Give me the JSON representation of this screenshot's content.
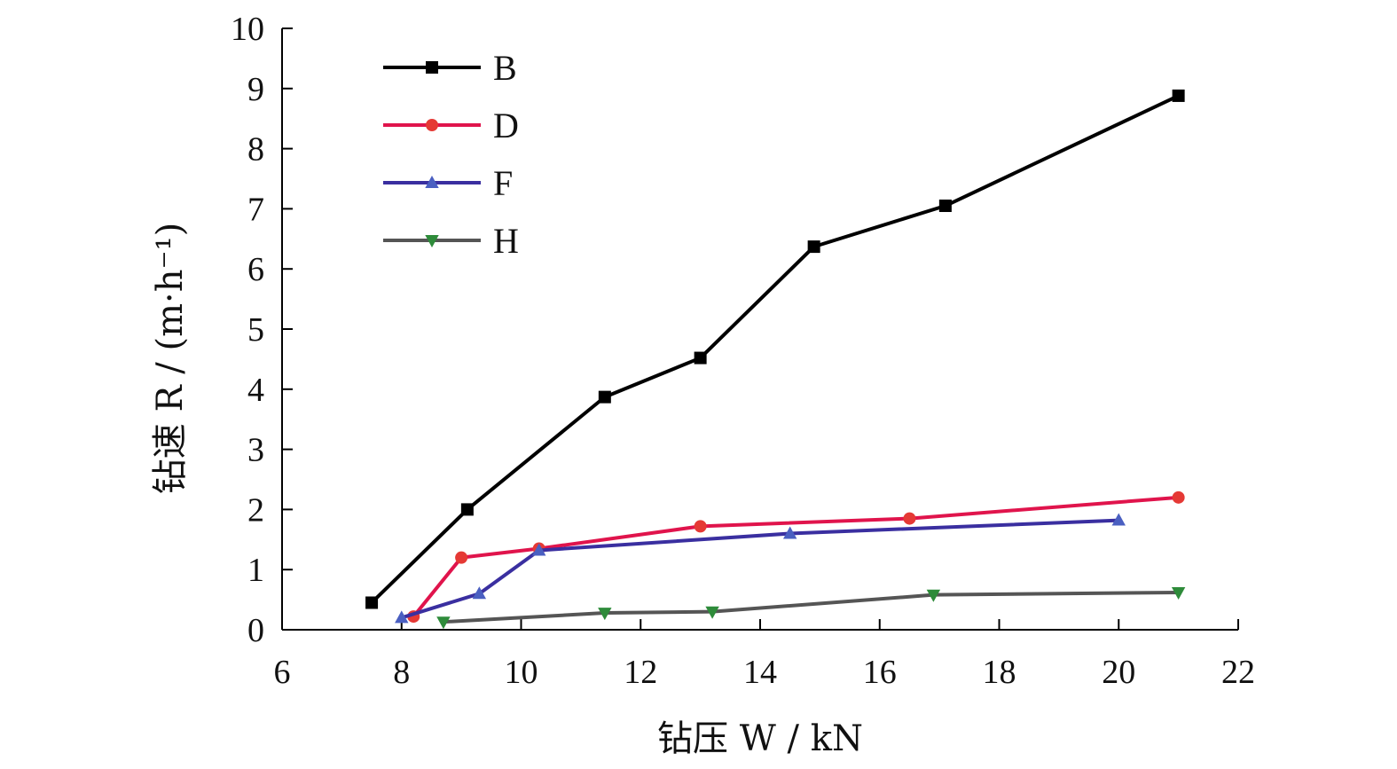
{
  "chart_data": {
    "type": "line",
    "title": "",
    "xlabel": "钻压 W / kN",
    "ylabel": "钻速 R / (m·h⁻¹)",
    "xlim": [
      6,
      22
    ],
    "ylim": [
      0,
      10
    ],
    "xticks": [
      6,
      8,
      10,
      12,
      14,
      16,
      18,
      20,
      22
    ],
    "yticks": [
      0,
      1,
      2,
      3,
      4,
      5,
      6,
      7,
      8,
      9,
      10
    ],
    "grid": false,
    "legend_position": "top-left",
    "series": [
      {
        "name": "B",
        "color": "#000000",
        "marker": "square",
        "x": [
          7.5,
          9.1,
          11.4,
          13.0,
          14.9,
          17.1,
          21.0
        ],
        "y": [
          0.45,
          2.0,
          3.87,
          4.52,
          6.37,
          7.05,
          8.88
        ]
      },
      {
        "name": "D",
        "color": "#e0144c",
        "marker": "circle",
        "marker_color": "#e53935",
        "x": [
          8.2,
          9.0,
          10.3,
          13.0,
          16.5,
          21.0
        ],
        "y": [
          0.22,
          1.2,
          1.35,
          1.72,
          1.85,
          2.2
        ]
      },
      {
        "name": "F",
        "color": "#3a2fa0",
        "marker": "triangle-up",
        "marker_color": "#4a5fc1",
        "x": [
          8.0,
          9.3,
          10.3,
          14.5,
          20.0
        ],
        "y": [
          0.2,
          0.6,
          1.32,
          1.6,
          1.82
        ]
      },
      {
        "name": "H",
        "color": "#555555",
        "marker": "triangle-down",
        "marker_color": "#2e8b3a",
        "x": [
          8.7,
          11.4,
          13.2,
          16.9,
          21.0
        ],
        "y": [
          0.13,
          0.28,
          0.3,
          0.58,
          0.62
        ]
      }
    ]
  }
}
